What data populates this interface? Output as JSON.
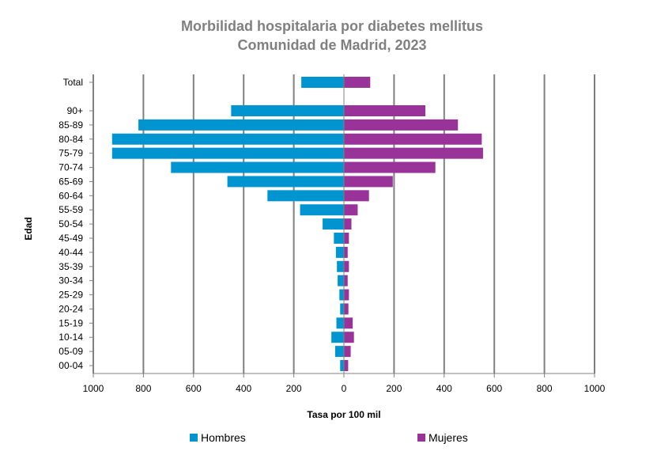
{
  "chart_data": {
    "type": "bar",
    "orientation": "horizontal",
    "layout": "population-pyramid",
    "title": "Morbilidad hospitalaria por diabetes mellitus",
    "subtitle": "Comunidad de Madrid, 2023",
    "xlabel": "Tasa por 100 mil",
    "ylabel": "Edad",
    "xlim": [
      -1000,
      1000
    ],
    "x_ticks": [
      -1000,
      -800,
      -600,
      -400,
      -200,
      0,
      200,
      400,
      600,
      800,
      1000
    ],
    "x_tick_labels": [
      "1000",
      "800",
      "600",
      "400",
      "200",
      "0",
      "200",
      "400",
      "600",
      "800",
      "1000"
    ],
    "grid": "vertical",
    "legend_position": "bottom",
    "categories": [
      "Total",
      "90+",
      "85-89",
      "80-84",
      "75-79",
      "70-74",
      "65-69",
      "60-64",
      "55-59",
      "50-54",
      "45-49",
      "40-44",
      "35-39",
      "30-34",
      "25-29",
      "20-24",
      "15-19",
      "10-14",
      "05-09",
      "00-04"
    ],
    "series": [
      {
        "name": "Hombres",
        "color": "#0095D1",
        "side": "left",
        "values": [
          170,
          450,
          820,
          925,
          925,
          690,
          465,
          305,
          175,
          85,
          40,
          32,
          28,
          25,
          18,
          15,
          30,
          50,
          35,
          15
        ]
      },
      {
        "name": "Mujeres",
        "color": "#993399",
        "side": "right",
        "values": [
          105,
          325,
          455,
          550,
          555,
          365,
          195,
          100,
          55,
          30,
          20,
          15,
          20,
          15,
          20,
          18,
          35,
          40,
          27,
          17
        ]
      }
    ]
  }
}
